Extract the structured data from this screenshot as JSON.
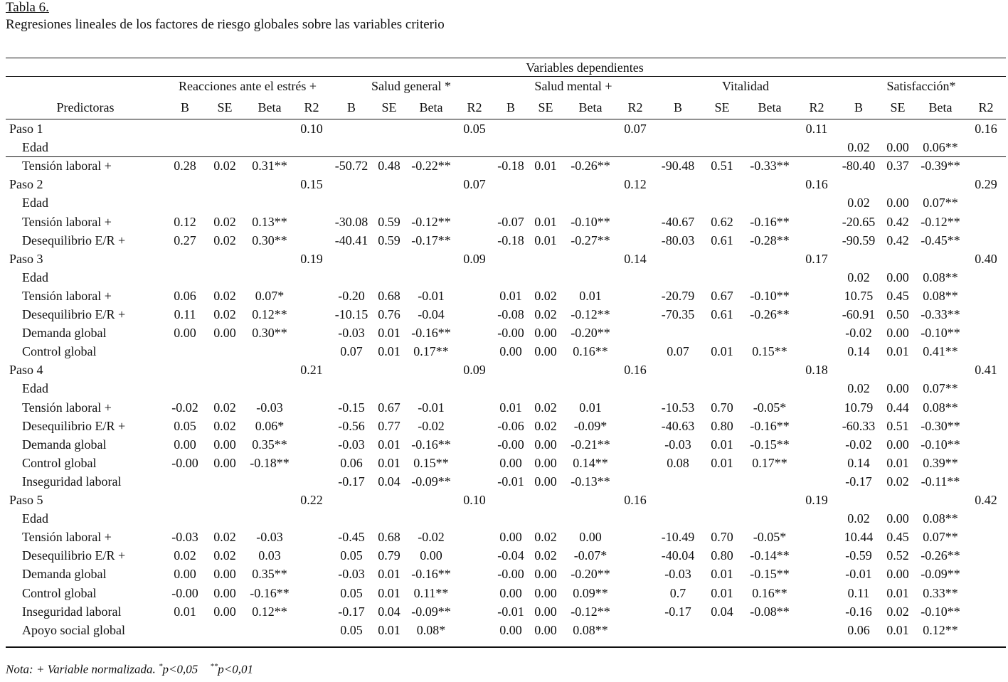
{
  "title": "Tabla 6.",
  "caption": "Regresiones lineales de los factores de riesgo globales sobre las variables criterio",
  "super_header": "Variables dependientes",
  "groups": [
    "Reacciones ante el estrés +",
    "Salud general *",
    "Salud mental +",
    "Vitalidad",
    "Satisfacción*"
  ],
  "predictor_header": "Predictoras",
  "sub_headers": [
    "B",
    "SE",
    "Beta",
    "R2"
  ],
  "rows": [
    {
      "label": "Paso 1",
      "step": true,
      "r2": [
        "0.10",
        "0.05",
        "0.07",
        "0.11",
        "0.16"
      ]
    },
    {
      "label": "Edad",
      "vals": [
        [
          "",
          "",
          ""
        ],
        [
          "",
          "",
          ""
        ],
        [
          "",
          "",
          ""
        ],
        [
          "",
          "",
          ""
        ],
        [
          "0.02",
          "0.00",
          "0.06**"
        ]
      ]
    },
    {
      "label": "Tensión laboral +",
      "vals": [
        [
          "0.28",
          "0.02",
          "0.31**"
        ],
        [
          "-50.72",
          "0.48",
          "-0.22**"
        ],
        [
          "-0.18",
          "0.01",
          "-0.26**"
        ],
        [
          "-90.48",
          "0.51",
          "-0.33**"
        ],
        [
          "-80.40",
          "0.37",
          "-0.39**"
        ]
      ]
    },
    {
      "label": "Paso 2",
      "step": true,
      "r2": [
        "0.15",
        "0.07",
        "0.12",
        "0.16",
        "0.29"
      ]
    },
    {
      "label": "Edad",
      "vals": [
        [
          "",
          "",
          ""
        ],
        [
          "",
          "",
          ""
        ],
        [
          "",
          "",
          ""
        ],
        [
          "",
          "",
          ""
        ],
        [
          "0.02",
          "0.00",
          "0.07**"
        ]
      ]
    },
    {
      "label": "Tensión laboral +",
      "vals": [
        [
          "0.12",
          "0.02",
          "0.13**"
        ],
        [
          "-30.08",
          "0.59",
          "-0.12**"
        ],
        [
          "-0.07",
          "0.01",
          "-0.10**"
        ],
        [
          "-40.67",
          "0.62",
          "-0.16**"
        ],
        [
          "-20.65",
          "0.42",
          "-0.12**"
        ]
      ]
    },
    {
      "label": "Desequilibrio E/R +",
      "vals": [
        [
          "0.27",
          "0.02",
          "0.30**"
        ],
        [
          "-40.41",
          "0.59",
          "-0.17**"
        ],
        [
          "-0.18",
          "0.01",
          "-0.27**"
        ],
        [
          "-80.03",
          "0.61",
          "-0.28**"
        ],
        [
          "-90.59",
          "0.42",
          "-0.45**"
        ]
      ]
    },
    {
      "label": "Paso 3",
      "step": true,
      "r2": [
        "0.19",
        "0.09",
        "0.14",
        "0.17",
        "0.40"
      ]
    },
    {
      "label": "Edad",
      "vals": [
        [
          "",
          "",
          ""
        ],
        [
          "",
          "",
          ""
        ],
        [
          "",
          "",
          ""
        ],
        [
          "",
          "",
          ""
        ],
        [
          "0.02",
          "0.00",
          "0.08**"
        ]
      ]
    },
    {
      "label": "Tensión laboral +",
      "vals": [
        [
          "0.06",
          "0.02",
          "0.07*"
        ],
        [
          "-0.20",
          "0.68",
          "-0.01"
        ],
        [
          "0.01",
          "0.02",
          "0.01"
        ],
        [
          "-20.79",
          "0.67",
          "-0.10**"
        ],
        [
          "10.75",
          "0.45",
          "0.08**"
        ]
      ]
    },
    {
      "label": "Desequilibrio E/R +",
      "vals": [
        [
          "0.11",
          "0.02",
          "0.12**"
        ],
        [
          "-10.15",
          "0.76",
          "-0.04"
        ],
        [
          "-0.08",
          "0.02",
          "-0.12**"
        ],
        [
          "-70.35",
          "0.61",
          "-0.26**"
        ],
        [
          "-60.91",
          "0.50",
          "-0.33**"
        ]
      ]
    },
    {
      "label": "Demanda global",
      "vals": [
        [
          "0.00",
          "0.00",
          "0.30**"
        ],
        [
          "-0.03",
          "0.01",
          "-0.16**"
        ],
        [
          "-0.00",
          "0.00",
          "-0.20**"
        ],
        [
          "",
          "",
          ""
        ],
        [
          "-0.02",
          "0.00",
          "-0.10**"
        ]
      ]
    },
    {
      "label": "Control global",
      "vals": [
        [
          "",
          "",
          ""
        ],
        [
          "0.07",
          "0.01",
          "0.17**"
        ],
        [
          "0.00",
          "0.00",
          "0.16**"
        ],
        [
          "0.07",
          "0.01",
          "0.15**"
        ],
        [
          "0.14",
          "0.01",
          "0.41**"
        ]
      ]
    },
    {
      "label": "Paso 4",
      "step": true,
      "r2": [
        "0.21",
        "0.09",
        "0.16",
        "0.18",
        "0.41"
      ]
    },
    {
      "label": "Edad",
      "vals": [
        [
          "",
          "",
          ""
        ],
        [
          "",
          "",
          ""
        ],
        [
          "",
          "",
          ""
        ],
        [
          "",
          "",
          ""
        ],
        [
          "0.02",
          "0.00",
          "0.07**"
        ]
      ]
    },
    {
      "label": "Tensión laboral +",
      "vals": [
        [
          "-0.02",
          "0.02",
          "-0.03"
        ],
        [
          "-0.15",
          "0.67",
          "-0.01"
        ],
        [
          "0.01",
          "0.02",
          "0.01"
        ],
        [
          "-10.53",
          "0.70",
          "-0.05*"
        ],
        [
          "10.79",
          "0.44",
          "0.08**"
        ]
      ]
    },
    {
      "label": "Desequilibrio E/R +",
      "vals": [
        [
          "0.05",
          "0.02",
          "0.06*"
        ],
        [
          "-0.56",
          "0.77",
          "-0.02"
        ],
        [
          "-0.06",
          "0.02",
          "-0.09*"
        ],
        [
          "-40.63",
          "0.80",
          "-0.16**"
        ],
        [
          "-60.33",
          "0.51",
          "-0.30**"
        ]
      ]
    },
    {
      "label": "Demanda global",
      "vals": [
        [
          "0.00",
          "0.00",
          "0.35**"
        ],
        [
          "-0.03",
          "0.01",
          "-0.16**"
        ],
        [
          "-0.00",
          "0.00",
          "-0.21**"
        ],
        [
          "-0.03",
          "0.01",
          "-0.15**"
        ],
        [
          "-0.02",
          "0.00",
          "-0.10**"
        ]
      ]
    },
    {
      "label": "Control global",
      "vals": [
        [
          "-0.00",
          "0.00",
          "-0.18**"
        ],
        [
          "0.06",
          "0.01",
          "0.15**"
        ],
        [
          "0.00",
          "0.00",
          "0.14**"
        ],
        [
          "0.08",
          "0.01",
          "0.17**"
        ],
        [
          "0.14",
          "0.01",
          "0.39**"
        ]
      ]
    },
    {
      "label": "Inseguridad laboral",
      "vals": [
        [
          "",
          "",
          ""
        ],
        [
          "-0.17",
          "0.04",
          "-0.09**"
        ],
        [
          "-0.01",
          "0.00",
          "-0.13**"
        ],
        [
          "",
          "",
          ""
        ],
        [
          "-0.17",
          "0.02",
          "-0.11**"
        ]
      ]
    },
    {
      "label": "Paso 5",
      "step": true,
      "r2": [
        "0.22",
        "0.10",
        "0.16",
        "0.19",
        "0.42"
      ]
    },
    {
      "label": "Edad",
      "vals": [
        [
          "",
          "",
          ""
        ],
        [
          "",
          "",
          ""
        ],
        [
          "",
          "",
          ""
        ],
        [
          "",
          "",
          ""
        ],
        [
          "0.02",
          "0.00",
          "0.08**"
        ]
      ]
    },
    {
      "label": "Tensión laboral +",
      "vals": [
        [
          "-0.03",
          "0.02",
          "-0.03"
        ],
        [
          "-0.45",
          "0.68",
          "-0.02"
        ],
        [
          "0.00",
          "0.02",
          "0.00"
        ],
        [
          "-10.49",
          "0.70",
          "-0.05*"
        ],
        [
          "10.44",
          "0.45",
          "0.07**"
        ]
      ]
    },
    {
      "label": "Desequilibrio E/R +",
      "vals": [
        [
          "0.02",
          "0.02",
          "0.03"
        ],
        [
          "0.05",
          "0.79",
          "0.00"
        ],
        [
          "-0.04",
          "0.02",
          "-0.07*"
        ],
        [
          "-40.04",
          "0.80",
          "-0.14**"
        ],
        [
          "-0.59",
          "0.52",
          "-0.26**"
        ]
      ]
    },
    {
      "label": "Demanda global",
      "vals": [
        [
          "0.00",
          "0.00",
          "0.35**"
        ],
        [
          "-0.03",
          "0.01",
          "-0.16**"
        ],
        [
          "-0.00",
          "0.00",
          "-0.20**"
        ],
        [
          "-0.03",
          "0.01",
          "-0.15**"
        ],
        [
          "-0.01",
          "0.00",
          "-0.09**"
        ]
      ]
    },
    {
      "label": "Control global",
      "vals": [
        [
          "-0.00",
          "0.00",
          "-0.16**"
        ],
        [
          "0.05",
          "0.01",
          "0.11**"
        ],
        [
          "0.00",
          "0.00",
          "0.09**"
        ],
        [
          "0.7",
          "0.01",
          "0.16**"
        ],
        [
          "0.11",
          "0.01",
          "0.33**"
        ]
      ]
    },
    {
      "label": "Inseguridad laboral",
      "vals": [
        [
          "0.01",
          "0.00",
          "0.12**"
        ],
        [
          "-0.17",
          "0.04",
          "-0.09**"
        ],
        [
          "-0.01",
          "0.00",
          "-0.12**"
        ],
        [
          "-0.17",
          "0.04",
          "-0.08**"
        ],
        [
          "-0.16",
          "0.02",
          "-0.10**"
        ]
      ]
    },
    {
      "label": "Apoyo social global",
      "vals": [
        [
          "",
          "",
          ""
        ],
        [
          "0.05",
          "0.01",
          "0.08*"
        ],
        [
          "0.00",
          "0.00",
          "0.08**"
        ],
        [
          "",
          "",
          ""
        ],
        [
          "0.06",
          "0.01",
          "0.12**"
        ]
      ]
    }
  ],
  "note": {
    "prefix": "Nota: + Variable normalizada. ",
    "sig1_mark": "*",
    "sig1_text": "p<0,05",
    "sig2_mark": "**",
    "sig2_text": "p<0,01"
  }
}
